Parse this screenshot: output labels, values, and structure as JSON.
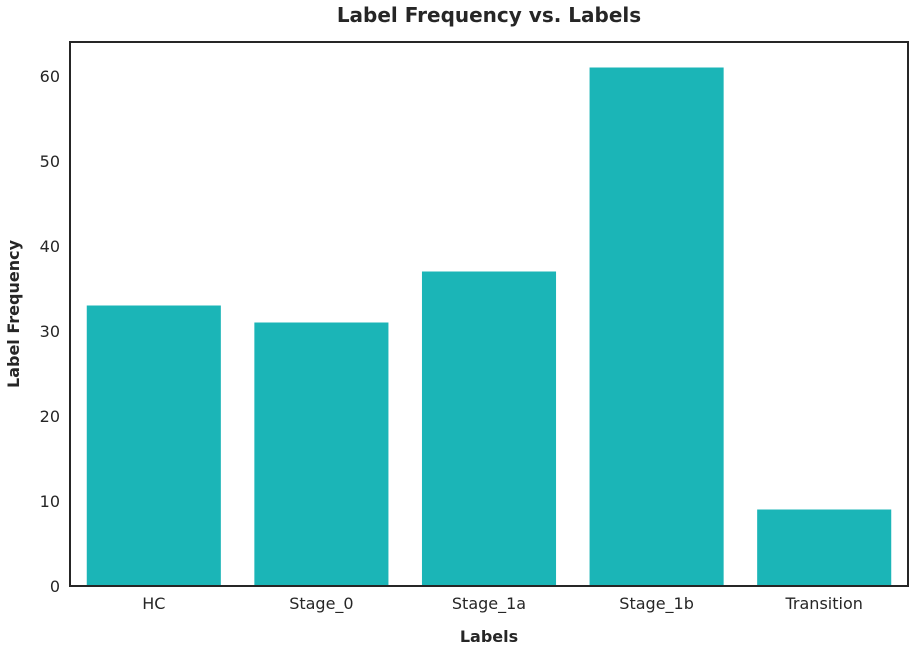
{
  "chart_data": {
    "type": "bar",
    "title": "Label Frequency vs. Labels",
    "xlabel": "Labels",
    "ylabel": "Label Frequency",
    "categories": [
      "HC",
      "Stage_0",
      "Stage_1a",
      "Stage_1b",
      "Transition"
    ],
    "values": [
      33,
      31,
      37,
      61,
      9
    ],
    "ylim": [
      0,
      64
    ],
    "yticks": [
      0,
      10,
      20,
      30,
      40,
      50,
      60
    ],
    "grid": false,
    "legend": "none",
    "bar_color": "#1bb5b7",
    "frame_color": "#262626"
  }
}
